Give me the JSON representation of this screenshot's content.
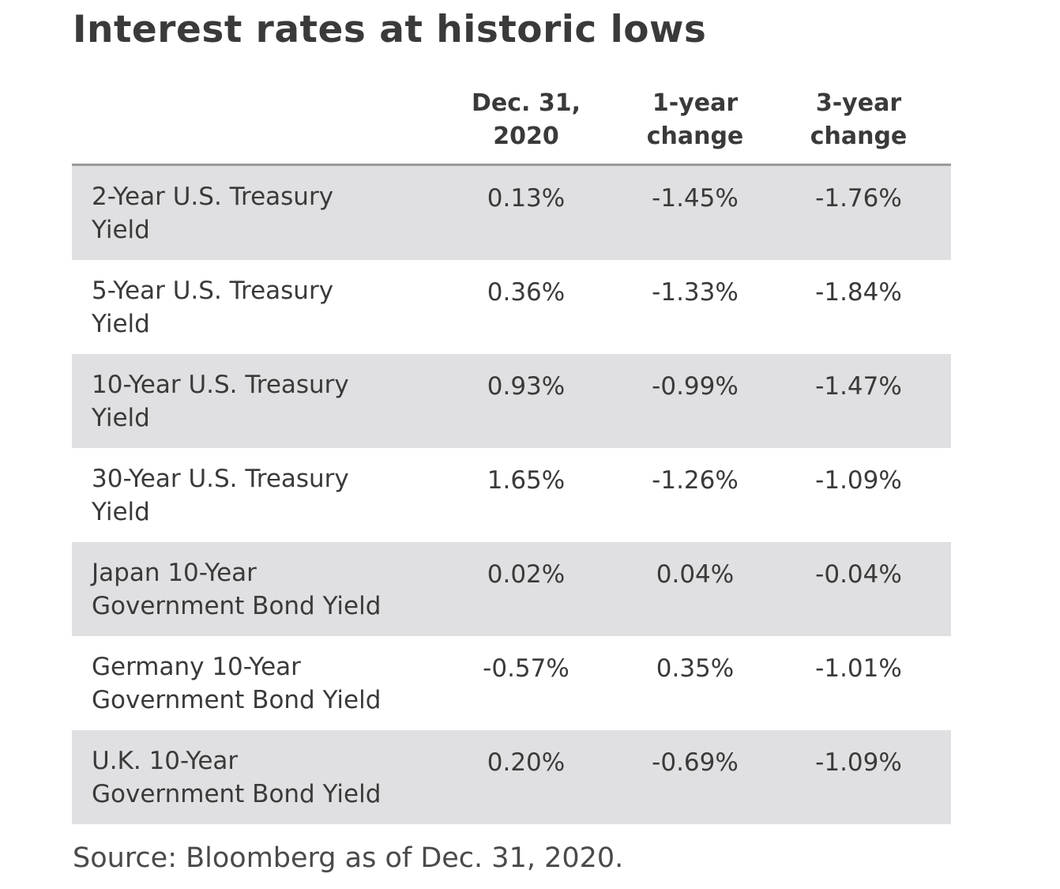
{
  "title": "Interest rates at historic lows",
  "source": "Source: Bloomberg as of Dec. 31, 2020.",
  "chart_data": {
    "type": "table",
    "title": "Interest rates at historic lows",
    "columns": [
      {
        "line1": "Dec. 31,",
        "line2": "2020"
      },
      {
        "line1": "1-year",
        "line2": "change"
      },
      {
        "line1": "3-year",
        "line2": "change"
      }
    ],
    "rows": [
      {
        "label_line1": "2-Year U.S. Treasury",
        "label_line2": "Yield",
        "values": [
          "0.13%",
          "-1.45%",
          "-1.76%"
        ],
        "shaded": true
      },
      {
        "label_line1": "5-Year U.S. Treasury",
        "label_line2": "Yield",
        "values": [
          "0.36%",
          "-1.33%",
          "-1.84%"
        ],
        "shaded": false
      },
      {
        "label_line1": "10-Year U.S. Treasury",
        "label_line2": "Yield",
        "values": [
          "0.93%",
          "-0.99%",
          "-1.47%"
        ],
        "shaded": true
      },
      {
        "label_line1": "30-Year U.S. Treasury",
        "label_line2": "Yield",
        "values": [
          "1.65%",
          "-1.26%",
          "-1.09%"
        ],
        "shaded": false
      },
      {
        "label_line1": "Japan 10-Year",
        "label_line2": "Government Bond Yield",
        "values": [
          "0.02%",
          "0.04%",
          "-0.04%"
        ],
        "shaded": true
      },
      {
        "label_line1": "Germany 10-Year",
        "label_line2": "Government Bond Yield",
        "values": [
          "-0.57%",
          "0.35%",
          "-1.01%"
        ],
        "shaded": false
      },
      {
        "label_line1": "U.K. 10-Year",
        "label_line2": "Government Bond Yield",
        "values": [
          "0.20%",
          "-0.69%",
          "-1.09%"
        ],
        "shaded": true
      }
    ],
    "shade_color": "#e0dfe1",
    "header_rule_color": "#9a9a9a"
  }
}
